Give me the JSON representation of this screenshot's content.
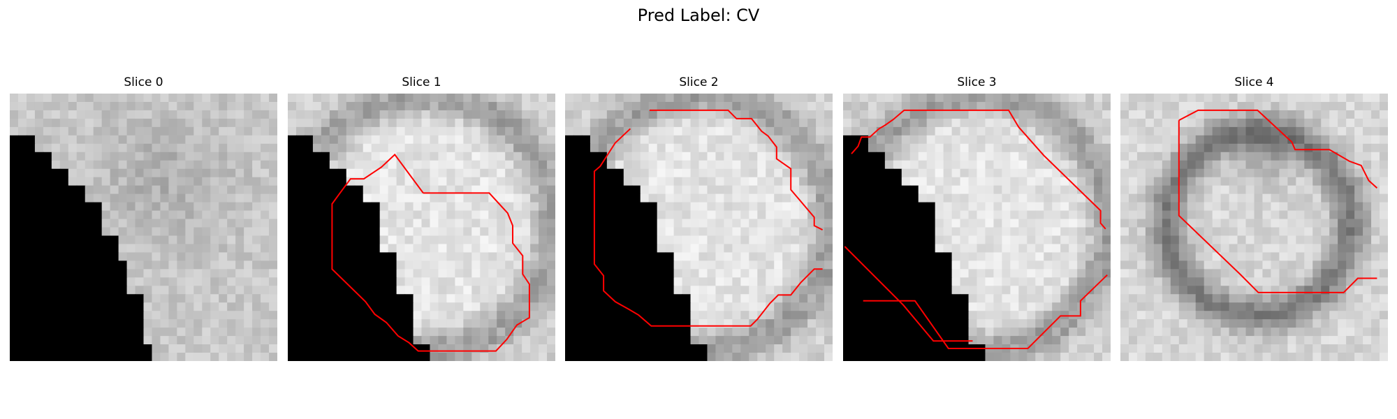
{
  "figure": {
    "title": "Pred Label: CV"
  },
  "slices": [
    {
      "title": "Slice 0",
      "has_contour": false
    },
    {
      "title": "Slice 1",
      "has_contour": true
    },
    {
      "title": "Slice 2",
      "has_contour": true
    },
    {
      "title": "Slice 3",
      "has_contour": true
    },
    {
      "title": "Slice 4",
      "has_contour": true
    }
  ],
  "colors": {
    "contour": "#ff0000",
    "mask": "#000000"
  }
}
